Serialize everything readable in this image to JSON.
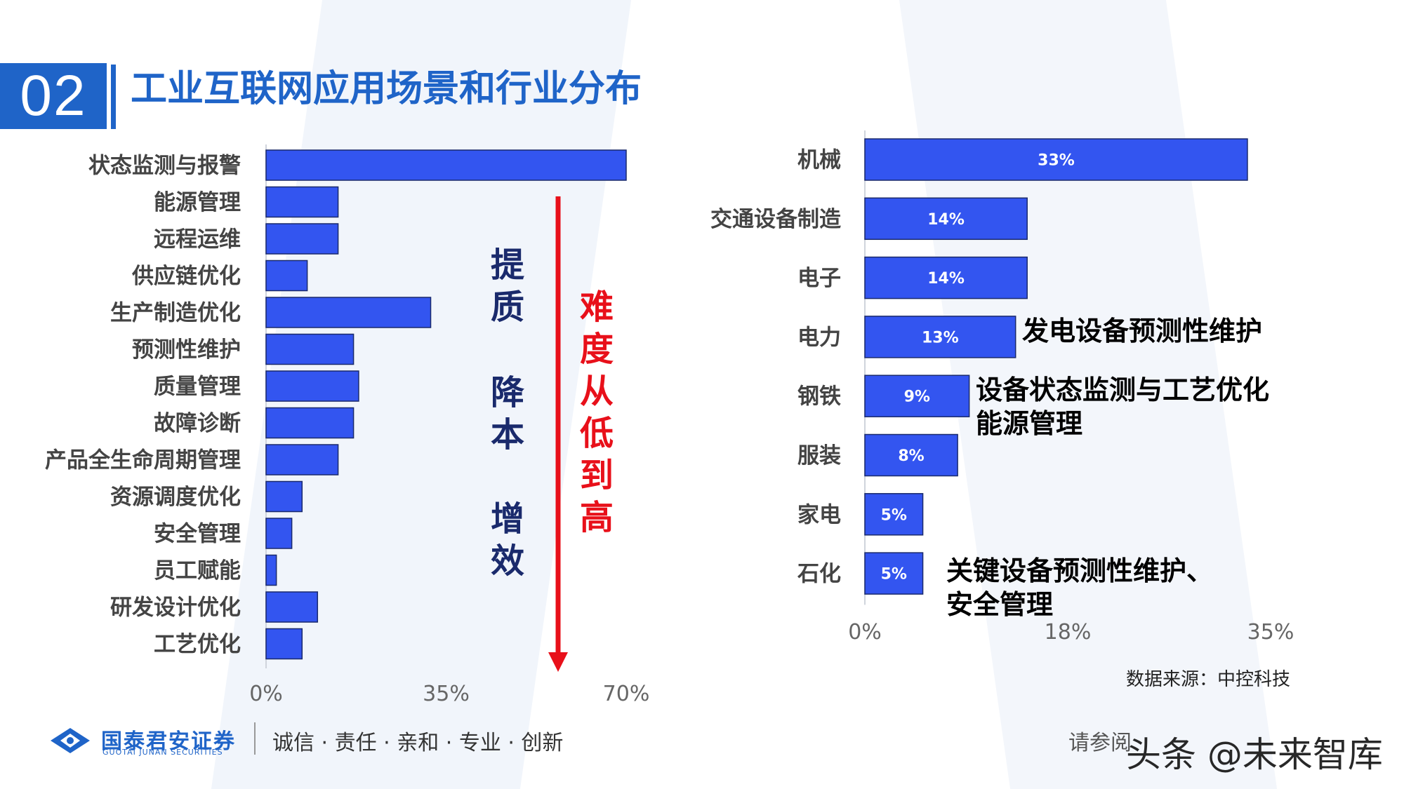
{
  "header": {
    "number": "02",
    "title": "工业互联网应用场景和行业分布"
  },
  "colors": {
    "brand": "#1f64c8",
    "bar": "#3355f0",
    "arrow": "#e8101a",
    "navy": "#1a2a6c"
  },
  "chart_data": [
    {
      "type": "bar",
      "orientation": "horizontal",
      "categories": [
        "状态监测与报警",
        "能源管理",
        "远程运维",
        "供应链优化",
        "生产制造优化",
        "预测性维护",
        "质量管理",
        "故障诊断",
        "产品全生命周期管理",
        "资源调度优化",
        "安全管理",
        "员工赋能",
        "研发设计优化",
        "工艺优化"
      ],
      "values": [
        70,
        14,
        14,
        8,
        32,
        17,
        18,
        17,
        14,
        7,
        5,
        2,
        10,
        7
      ],
      "xlim": [
        0,
        70
      ],
      "xticks": [
        "0%",
        "35%",
        "70%"
      ],
      "title": "",
      "xlabel": "",
      "ylabel": ""
    },
    {
      "type": "bar",
      "orientation": "horizontal",
      "categories": [
        "机械",
        "交通设备制造",
        "电子",
        "电力",
        "钢铁",
        "服装",
        "家电",
        "石化"
      ],
      "values": [
        33,
        14,
        14,
        13,
        9,
        8,
        5,
        5
      ],
      "data_labels": [
        "33%",
        "14%",
        "14%",
        "13%",
        "9%",
        "8%",
        "5%",
        "5%"
      ],
      "xlim": [
        0,
        35
      ],
      "xticks": [
        "0%",
        "18%",
        "35%"
      ],
      "title": "",
      "xlabel": "",
      "ylabel": ""
    }
  ],
  "annotations": {
    "goal_chars": [
      "提",
      "质",
      "降",
      "本",
      "增",
      "效"
    ],
    "difficulty_chars": [
      "难",
      "度",
      "从",
      "低",
      "到",
      "高"
    ],
    "notes": [
      "发电设备预测性维护",
      "设备状态监测与工艺优化\n能源管理",
      "关键设备预测性维护、\n安全管理"
    ]
  },
  "source": "数据来源：中控科技",
  "footer": {
    "logo_cn": "国泰君安证券",
    "logo_en": "GUOTAI JUNAN SECURITIES",
    "slogan": "诚信 · 责任 · 亲和 · 专业 · 创新",
    "disclaimer": "请参阅",
    "watermark": "头条 @未来智库"
  }
}
